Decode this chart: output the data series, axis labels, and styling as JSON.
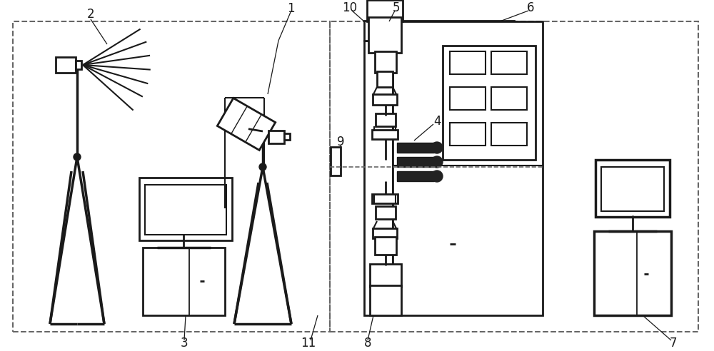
{
  "bg_color": "#ffffff",
  "lc": "#1a1a1a",
  "dc": "#666666",
  "fig_width": 10.0,
  "fig_height": 4.92,
  "dpi": 100
}
